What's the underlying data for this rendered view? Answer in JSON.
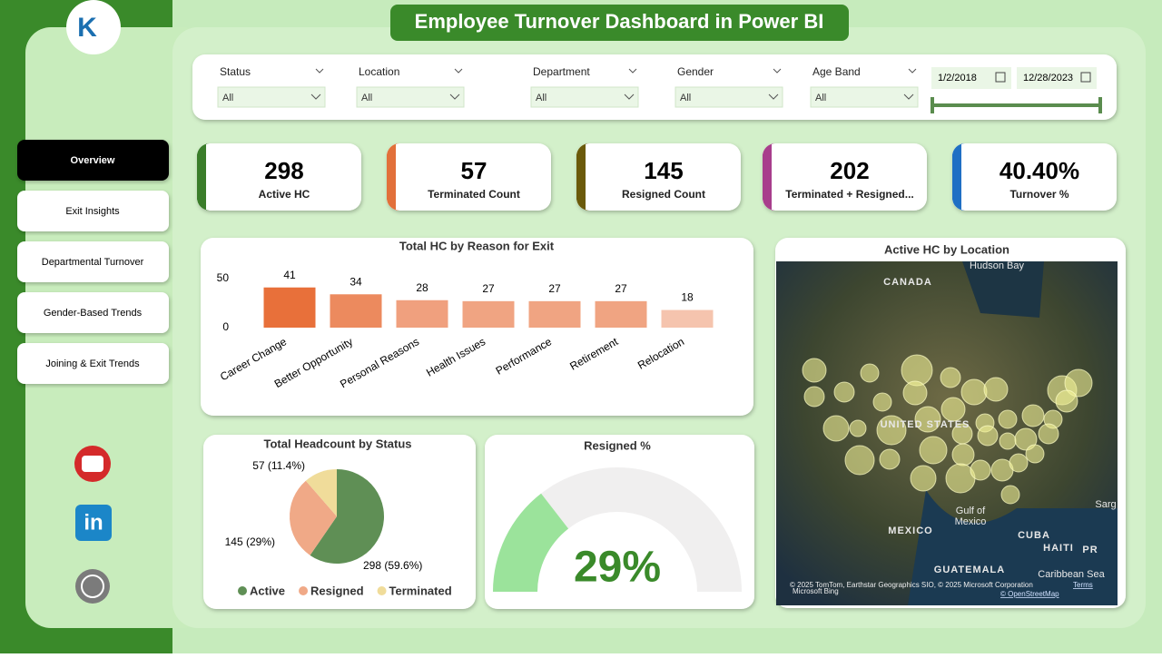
{
  "header": {
    "title": "Employee Turnover Dashboard in Power BI"
  },
  "nav": [
    "Overview",
    "Exit Insights",
    "Departmental Turnover",
    "Gender-Based Trends",
    "Joining & Exit Trends"
  ],
  "filters": [
    {
      "label": "Status",
      "value": "All"
    },
    {
      "label": "Location",
      "value": "All"
    },
    {
      "label": "Department",
      "value": "All"
    },
    {
      "label": "Gender",
      "value": "All"
    },
    {
      "label": "Age Band",
      "value": "All"
    }
  ],
  "date_range": [
    "1/2/2018",
    "12/28/2023"
  ],
  "kpis": [
    {
      "value": "298",
      "label": "Active HC",
      "color": "#3a7d2a"
    },
    {
      "value": "57",
      "label": "Terminated Count",
      "color": "#e2703a"
    },
    {
      "value": "145",
      "label": "Resigned Count",
      "color": "#6b5a0a"
    },
    {
      "value": "202",
      "label": "Terminated + Resigned...",
      "color": "#a83e8c"
    },
    {
      "value": "40.40%",
      "label": "Turnover %",
      "color": "#1f6fc4"
    }
  ],
  "chart_data": [
    {
      "type": "bar",
      "title": "Total HC by Reason for Exit",
      "categories": [
        "Career Change",
        "Better Opportunity",
        "Personal Reasons",
        "Health Issues",
        "Performance",
        "Retirement",
        "Relocation"
      ],
      "values": [
        41,
        34,
        28,
        27,
        27,
        27,
        18
      ],
      "colors": [
        "#e8703a",
        "#ec8a5e",
        "#f0a07e",
        "#f0a482",
        "#f0a482",
        "#f0a482",
        "#f5c4ae"
      ],
      "ylim": [
        0,
        50
      ],
      "yticks": [
        0,
        50
      ]
    },
    {
      "type": "pie",
      "title": "Total Headcount by Status",
      "categories": [
        "Active",
        "Resigned",
        "Terminated"
      ],
      "values": [
        298,
        145,
        57
      ],
      "value_labels": [
        "298 (59.6%)",
        "145 (29%)",
        "57 (11.4%)"
      ],
      "colors": [
        "#5f8f55",
        "#f0a987",
        "#f0dc9a"
      ]
    },
    {
      "type": "gauge",
      "title": "Resigned %",
      "values": [
        29
      ],
      "value_labels": [
        "29%"
      ],
      "ylim": [
        0,
        100
      ],
      "color": "#9be39b"
    }
  ],
  "map": {
    "title": "Active HC by Location",
    "labels": [
      "Hudson Bay",
      "CANADA",
      "UNITED STATES",
      "Gulf of",
      "Mexico",
      "MEXICO",
      "CUBA",
      "HAITI",
      "PR",
      "GUATEMALA",
      "Caribbean Sea",
      "Sarg"
    ],
    "attribution": "© 2025 TomTom, Earthstar Geographics SIO, © 2025 Microsoft Corporation",
    "links": [
      "Terms",
      "© OpenStreetMap"
    ],
    "brand": "Microsoft Bing"
  }
}
